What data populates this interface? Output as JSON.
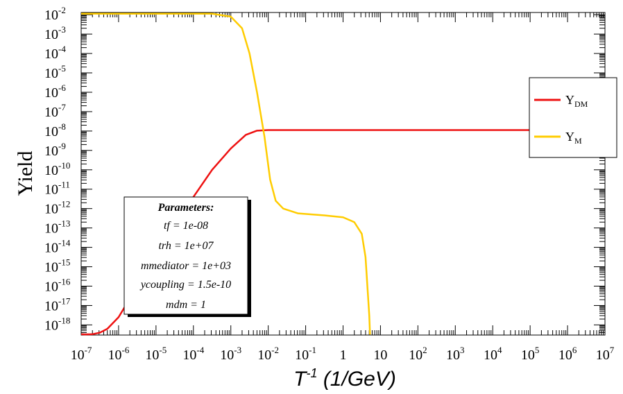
{
  "chart_data": {
    "type": "line",
    "xscale": "log",
    "yscale": "log",
    "xlim": [
      1e-07,
      10000000.0
    ],
    "ylim": [
      3e-19,
      0.013
    ],
    "xlabel": {
      "base": "T",
      "sup": "-1",
      "rest": " (1/GeV)"
    },
    "ylabel": "Yield",
    "x_ticks": [
      {
        "base": "10",
        "sup": "-7",
        "value": -7
      },
      {
        "base": "10",
        "sup": "-6",
        "value": -6
      },
      {
        "base": "10",
        "sup": "-5",
        "value": -5
      },
      {
        "base": "10",
        "sup": "-4",
        "value": -4
      },
      {
        "base": "10",
        "sup": "-3",
        "value": -3
      },
      {
        "base": "10",
        "sup": "-2",
        "value": -2
      },
      {
        "base": "10",
        "sup": "-1",
        "value": -1
      },
      {
        "base": "1",
        "sup": "",
        "value": 0
      },
      {
        "base": "10",
        "sup": "",
        "value": 1
      },
      {
        "base": "10",
        "sup": "2",
        "value": 2
      },
      {
        "base": "10",
        "sup": "3",
        "value": 3
      },
      {
        "base": "10",
        "sup": "4",
        "value": 4
      },
      {
        "base": "10",
        "sup": "5",
        "value": 5
      },
      {
        "base": "10",
        "sup": "6",
        "value": 6
      },
      {
        "base": "10",
        "sup": "7",
        "value": 7
      }
    ],
    "y_ticks": [
      {
        "base": "10",
        "sup": "-2",
        "value": -2
      },
      {
        "base": "10",
        "sup": "-3",
        "value": -3
      },
      {
        "base": "10",
        "sup": "-4",
        "value": -4
      },
      {
        "base": "10",
        "sup": "-5",
        "value": -5
      },
      {
        "base": "10",
        "sup": "-6",
        "value": -6
      },
      {
        "base": "10",
        "sup": "-7",
        "value": -7
      },
      {
        "base": "10",
        "sup": "-8",
        "value": -8
      },
      {
        "base": "10",
        "sup": "-9",
        "value": -9
      },
      {
        "base": "10",
        "sup": "-10",
        "value": -10
      },
      {
        "base": "10",
        "sup": "-11",
        "value": -11
      },
      {
        "base": "10",
        "sup": "-12",
        "value": -12
      },
      {
        "base": "10",
        "sup": "-13",
        "value": -13
      },
      {
        "base": "10",
        "sup": "-14",
        "value": -14
      },
      {
        "base": "10",
        "sup": "-15",
        "value": -15
      },
      {
        "base": "10",
        "sup": "-16",
        "value": -16
      },
      {
        "base": "10",
        "sup": "-17",
        "value": -17
      },
      {
        "base": "10",
        "sup": "-18",
        "value": -18
      }
    ],
    "series": [
      {
        "name": "Y_DM",
        "label_main": "Y",
        "label_sub": "DM",
        "color": "#ee1111",
        "log10_points": [
          [
            -7.0,
            -18.48
          ],
          [
            -6.9,
            -18.49
          ],
          [
            -6.7,
            -18.48
          ],
          [
            -6.5,
            -18.4
          ],
          [
            -6.3,
            -18.2
          ],
          [
            -6.0,
            -17.6
          ],
          [
            -5.5,
            -16.0
          ],
          [
            -5.2,
            -14.5
          ],
          [
            -5.0,
            -13.8
          ],
          [
            -4.5,
            -12.6
          ],
          [
            -4.0,
            -11.4
          ],
          [
            -3.5,
            -10.0
          ],
          [
            -3.0,
            -8.9
          ],
          [
            -2.6,
            -8.2
          ],
          [
            -2.3,
            -7.98
          ],
          [
            -2.0,
            -7.95
          ],
          [
            7.0,
            -7.95
          ]
        ]
      },
      {
        "name": "Y_M",
        "label_main": "Y",
        "label_sub": "M",
        "color": "#ffcc00",
        "log10_points": [
          [
            -7.0,
            -1.95
          ],
          [
            -3.5,
            -1.95
          ],
          [
            -3.0,
            -2.1
          ],
          [
            -2.7,
            -2.7
          ],
          [
            -2.5,
            -4.0
          ],
          [
            -2.3,
            -6.0
          ],
          [
            -2.1,
            -8.3
          ],
          [
            -1.95,
            -10.5
          ],
          [
            -1.8,
            -11.6
          ],
          [
            -1.6,
            -12.0
          ],
          [
            -1.2,
            -12.25
          ],
          [
            -0.5,
            -12.35
          ],
          [
            0.0,
            -12.45
          ],
          [
            0.3,
            -12.7
          ],
          [
            0.5,
            -13.3
          ],
          [
            0.6,
            -14.5
          ],
          [
            0.65,
            -16.0
          ],
          [
            0.7,
            -17.5
          ],
          [
            0.72,
            -18.5
          ]
        ]
      }
    ],
    "legend_position": "right"
  },
  "parameters": {
    "title": "Parameters:",
    "lines": [
      "tf = 1e-08",
      "trh = 1e+07",
      "mmediator = 1e+03",
      "ycoupling = 1.5e-10",
      "mdm =  1"
    ]
  }
}
